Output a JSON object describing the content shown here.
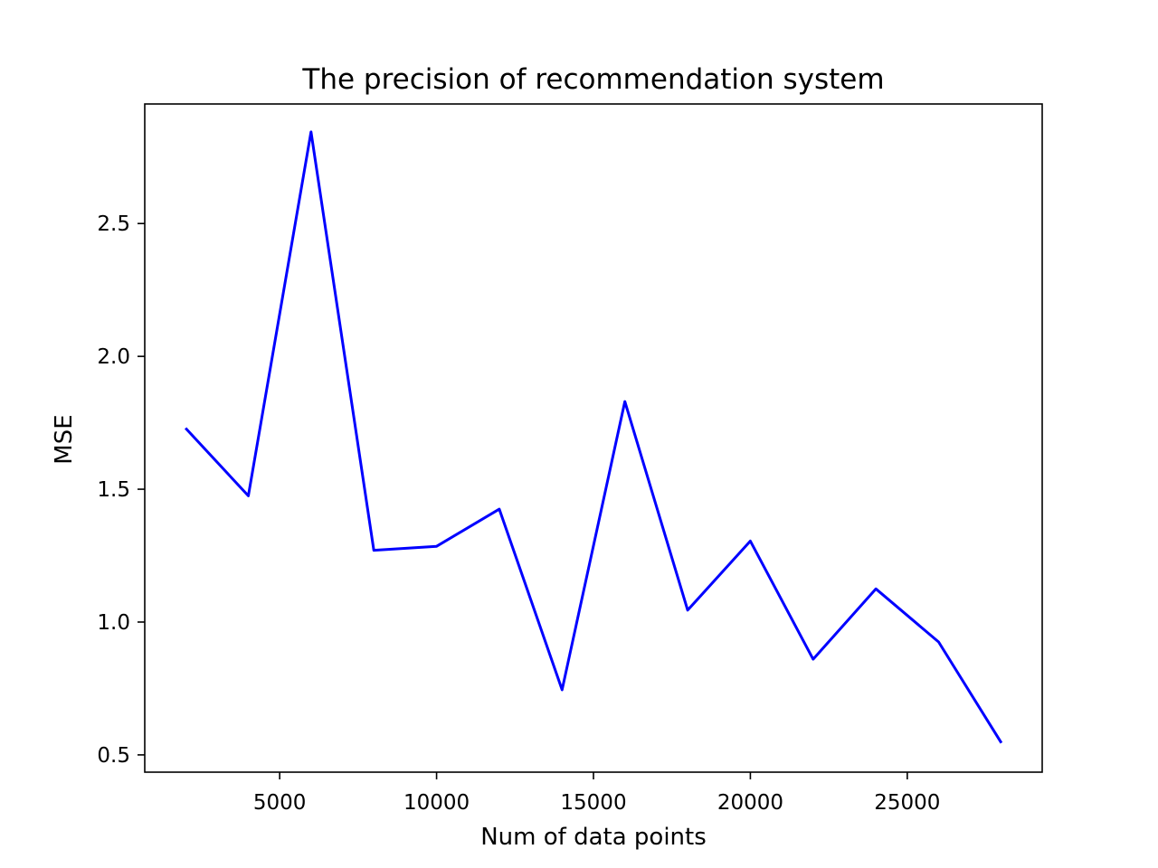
{
  "chart_data": {
    "type": "line",
    "title": "The precision of recommendation system",
    "xlabel": "Num of data points",
    "ylabel": "MSE",
    "xlim": [
      700,
      29300
    ],
    "ylim": [
      0.435,
      2.95
    ],
    "xticks": [
      5000,
      10000,
      15000,
      20000,
      25000
    ],
    "yticks": [
      0.5,
      1.0,
      1.5,
      2.0,
      2.5
    ],
    "xtick_labels": [
      "5000",
      "10000",
      "15000",
      "20000",
      "25000"
    ],
    "ytick_labels": [
      "0.5",
      "1.0",
      "1.5",
      "2.0",
      "2.5"
    ],
    "grid": false,
    "series": [
      {
        "color": "#0000ff",
        "x": [
          2000,
          4000,
          6000,
          8000,
          10000,
          12000,
          14000,
          16000,
          18000,
          20000,
          22000,
          24000,
          26000,
          28000
        ],
        "y": [
          1.73,
          1.475,
          2.845,
          1.27,
          1.285,
          1.425,
          0.745,
          1.83,
          1.045,
          1.305,
          0.86,
          1.125,
          0.925,
          0.545
        ]
      }
    ]
  }
}
